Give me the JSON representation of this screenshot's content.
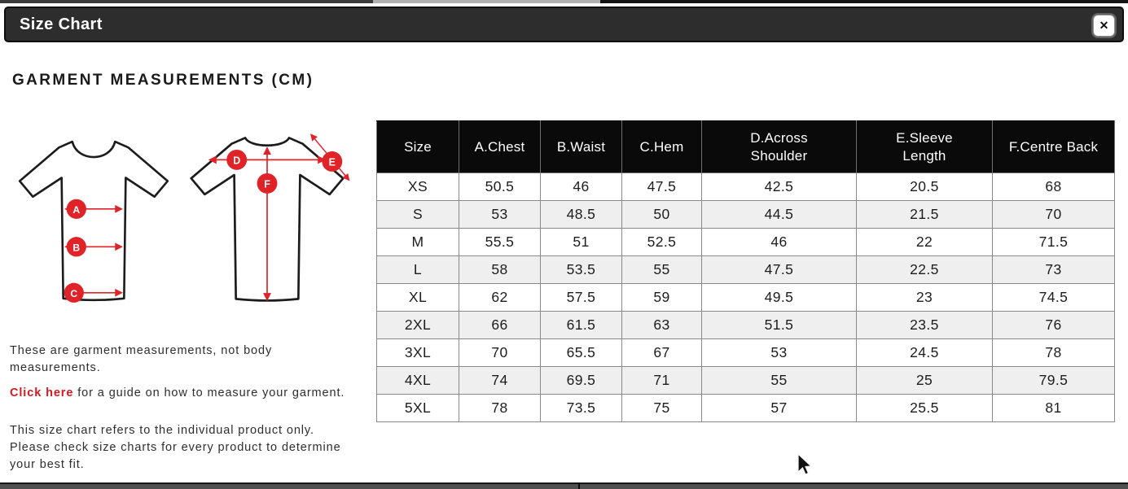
{
  "modal": {
    "title": "Size Chart",
    "close_label": "✕"
  },
  "heading": "GARMENT MEASUREMENTS (CM)",
  "notes": {
    "note1": "These are garment measurements, not body measurements.",
    "link_text": "Click here",
    "note2_rest": " for a guide on how to measure your garment.",
    "note3": "This size chart refers to the individual product only. Please check size charts for every product to determine your best fit."
  },
  "diagram": {
    "front_labels": [
      "A",
      "B",
      "C"
    ],
    "back_labels": [
      "D",
      "F",
      "E"
    ],
    "accent_color": "#e02329"
  },
  "colors": {
    "header_bar": "#2d2d2d",
    "table_header_bg": "#0a0a0a",
    "row_stripe": "#efefef",
    "link_red": "#d6181f",
    "measure_red": "#e02329"
  },
  "chart_data": {
    "type": "table",
    "title": "GARMENT MEASUREMENTS (CM)",
    "columns": [
      "Size",
      "A.Chest",
      "B.Waist",
      "C.Hem",
      "D.Across Shoulder",
      "E.Sleeve Length",
      "F.Centre Back"
    ],
    "rows": [
      [
        "XS",
        "50.5",
        "46",
        "47.5",
        "42.5",
        "20.5",
        "68"
      ],
      [
        "S",
        "53",
        "48.5",
        "50",
        "44.5",
        "21.5",
        "70"
      ],
      [
        "M",
        "55.5",
        "51",
        "52.5",
        "46",
        "22",
        "71.5"
      ],
      [
        "L",
        "58",
        "53.5",
        "55",
        "47.5",
        "22.5",
        "73"
      ],
      [
        "XL",
        "62",
        "57.5",
        "59",
        "49.5",
        "23",
        "74.5"
      ],
      [
        "2XL",
        "66",
        "61.5",
        "63",
        "51.5",
        "23.5",
        "76"
      ],
      [
        "3XL",
        "70",
        "65.5",
        "67",
        "53",
        "24.5",
        "78"
      ],
      [
        "4XL",
        "74",
        "69.5",
        "71",
        "55",
        "25",
        "79.5"
      ],
      [
        "5XL",
        "78",
        "73.5",
        "75",
        "57",
        "25.5",
        "81"
      ]
    ]
  }
}
